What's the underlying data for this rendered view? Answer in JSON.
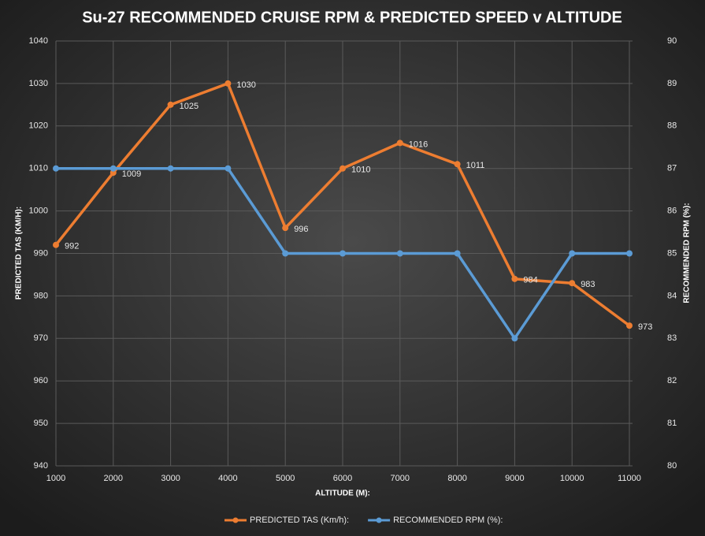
{
  "chart_data": {
    "type": "line",
    "title": "Su-27 RECOMMENDED CRUISE RPM & PREDICTED SPEED v ALTITUDE",
    "x_label": "ALTITUDE (M):",
    "y_label": "PREDICTED TAS (KM/H):",
    "y2_label": "RECOMMENDED RPM (%):",
    "x": [
      1000,
      2000,
      3000,
      4000,
      5000,
      6000,
      7000,
      8000,
      9000,
      10000,
      11000
    ],
    "xlim": [
      1000,
      11000
    ],
    "xticks": [
      1000,
      2000,
      3000,
      4000,
      5000,
      6000,
      7000,
      8000,
      9000,
      10000,
      11000
    ],
    "ylim": [
      940,
      1040
    ],
    "yticks": [
      940,
      950,
      960,
      970,
      980,
      990,
      1000,
      1010,
      1020,
      1030,
      1040
    ],
    "y2lim": [
      80,
      90
    ],
    "y2ticks": [
      80,
      81,
      82,
      83,
      84,
      85,
      86,
      87,
      88,
      89,
      90
    ],
    "grid": true,
    "legend": "bottom",
    "series": [
      {
        "name": "PREDICTED TAS (Km/h):",
        "color": "#ed7d31",
        "axis": "y",
        "data_labels": true,
        "values": [
          992,
          1009,
          1025,
          1030,
          996,
          1010,
          1016,
          1011,
          984,
          983,
          973
        ]
      },
      {
        "name": "RECOMMENDED RPM (%):",
        "color": "#5b9bd5",
        "axis": "y2",
        "data_labels": false,
        "values": [
          87,
          87,
          87,
          87,
          85,
          85,
          85,
          85,
          83,
          85,
          85
        ]
      }
    ]
  }
}
